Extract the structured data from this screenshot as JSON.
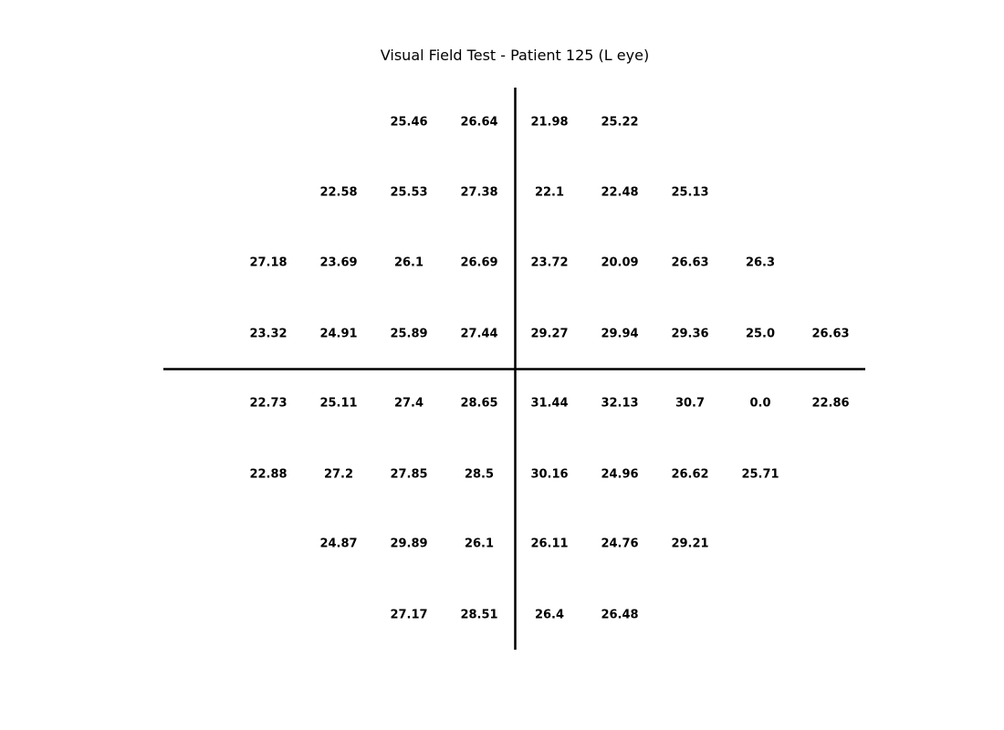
{
  "chart_data": {
    "type": "table",
    "title": "Visual Field Test - Patient 125 (L eye)",
    "grid": false,
    "axis_lines": "cross through center",
    "columns": 9,
    "rows": [
      [
        null,
        null,
        "25.46",
        "26.64",
        "21.98",
        "25.22",
        null,
        null,
        null
      ],
      [
        null,
        "22.58",
        "25.53",
        "27.38",
        "22.1",
        "22.48",
        "25.13",
        null,
        null
      ],
      [
        "27.18",
        "23.69",
        "26.1",
        "26.69",
        "23.72",
        "20.09",
        "26.63",
        "26.3",
        null
      ],
      [
        "23.32",
        "24.91",
        "25.89",
        "27.44",
        "29.27",
        "29.94",
        "29.36",
        "25.0",
        "26.63"
      ],
      [
        "22.73",
        "25.11",
        "27.4",
        "28.65",
        "31.44",
        "32.13",
        "30.7",
        "0.0",
        "22.86"
      ],
      [
        "22.88",
        "27.2",
        "27.85",
        "28.5",
        "30.16",
        "24.96",
        "26.62",
        "25.71",
        null
      ],
      [
        null,
        "24.87",
        "29.89",
        "26.1",
        "26.11",
        "24.76",
        "29.21",
        null,
        null
      ],
      [
        null,
        null,
        "27.17",
        "28.51",
        "26.4",
        "26.48",
        null,
        null,
        null
      ]
    ]
  }
}
